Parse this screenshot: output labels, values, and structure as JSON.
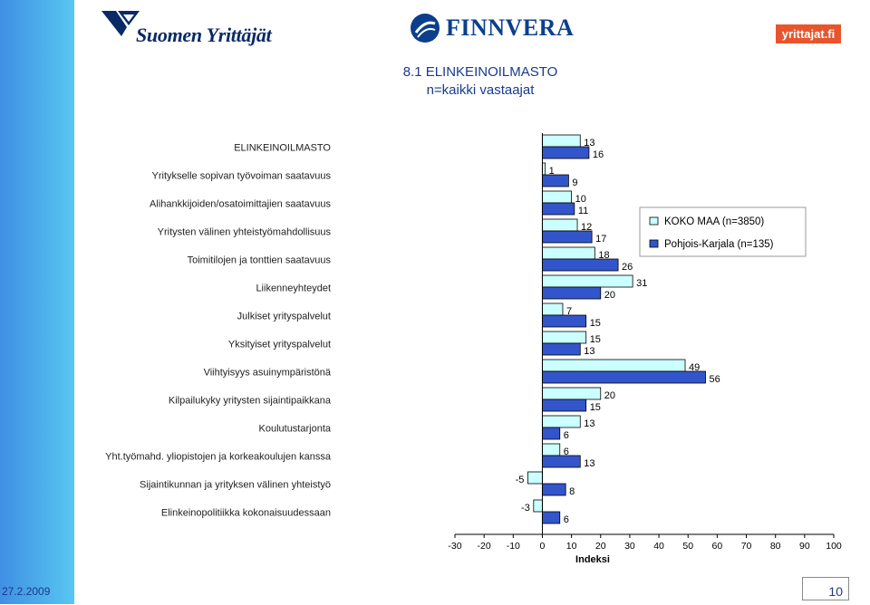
{
  "header": {
    "logo_suomen_yrittajat": "Suomen Yrittäjät",
    "logo_finnvera": "FINNVERA",
    "logo_yrittajat_fi": "yrittajat.fi"
  },
  "footer": {
    "date": "27.2.2009",
    "page_number": "10"
  },
  "colors": {
    "series1": "#ccffff",
    "series2": "#3355cc",
    "sidebar": "#4aa8ec"
  },
  "chart_data": {
    "type": "bar",
    "orientation": "horizontal",
    "title": "8.1 ELINKEINOILMASTO",
    "subtitle": "n=kaikki vastaajat",
    "xlabel": "Indeksi",
    "ylabel": "",
    "xlim": [
      -30,
      100
    ],
    "xticks": [
      -30,
      -20,
      -10,
      0,
      10,
      20,
      30,
      40,
      50,
      60,
      70,
      80,
      90,
      100
    ],
    "grid": false,
    "legend_position": "right",
    "categories": [
      "ELINKEINOILMASTO",
      "Yritykselle sopivan työvoiman saatavuus",
      "Alihankkijoiden/osatoimittajien saatavuus",
      "Yritysten välinen yhteistyömahdollisuus",
      "Toimitilojen ja tonttien saatavuus",
      "Liikenneyhteydet",
      "Julkiset yrityspalvelut",
      "Yksityiset yrityspalvelut",
      "Viihtyisyys asuinympäristönä",
      "Kilpailukyky yritysten sijaintipaikkana",
      "Koulutustarjonta",
      "Yht.työmahd. yliopistojen ja korkeakoulujen kanssa",
      "Sijaintikunnan ja yrityksen välinen yhteistyö",
      "Elinkeinopolitiikka kokonaisuudessaan"
    ],
    "series": [
      {
        "name": "KOKO MAA (n=3850)",
        "values": [
          13,
          1,
          10,
          12,
          18,
          31,
          7,
          15,
          49,
          20,
          13,
          6,
          -5,
          -3
        ]
      },
      {
        "name": "Pohjois-Karjala (n=135)",
        "values": [
          16,
          9,
          11,
          17,
          26,
          20,
          15,
          13,
          56,
          15,
          6,
          13,
          8,
          6
        ]
      }
    ]
  }
}
